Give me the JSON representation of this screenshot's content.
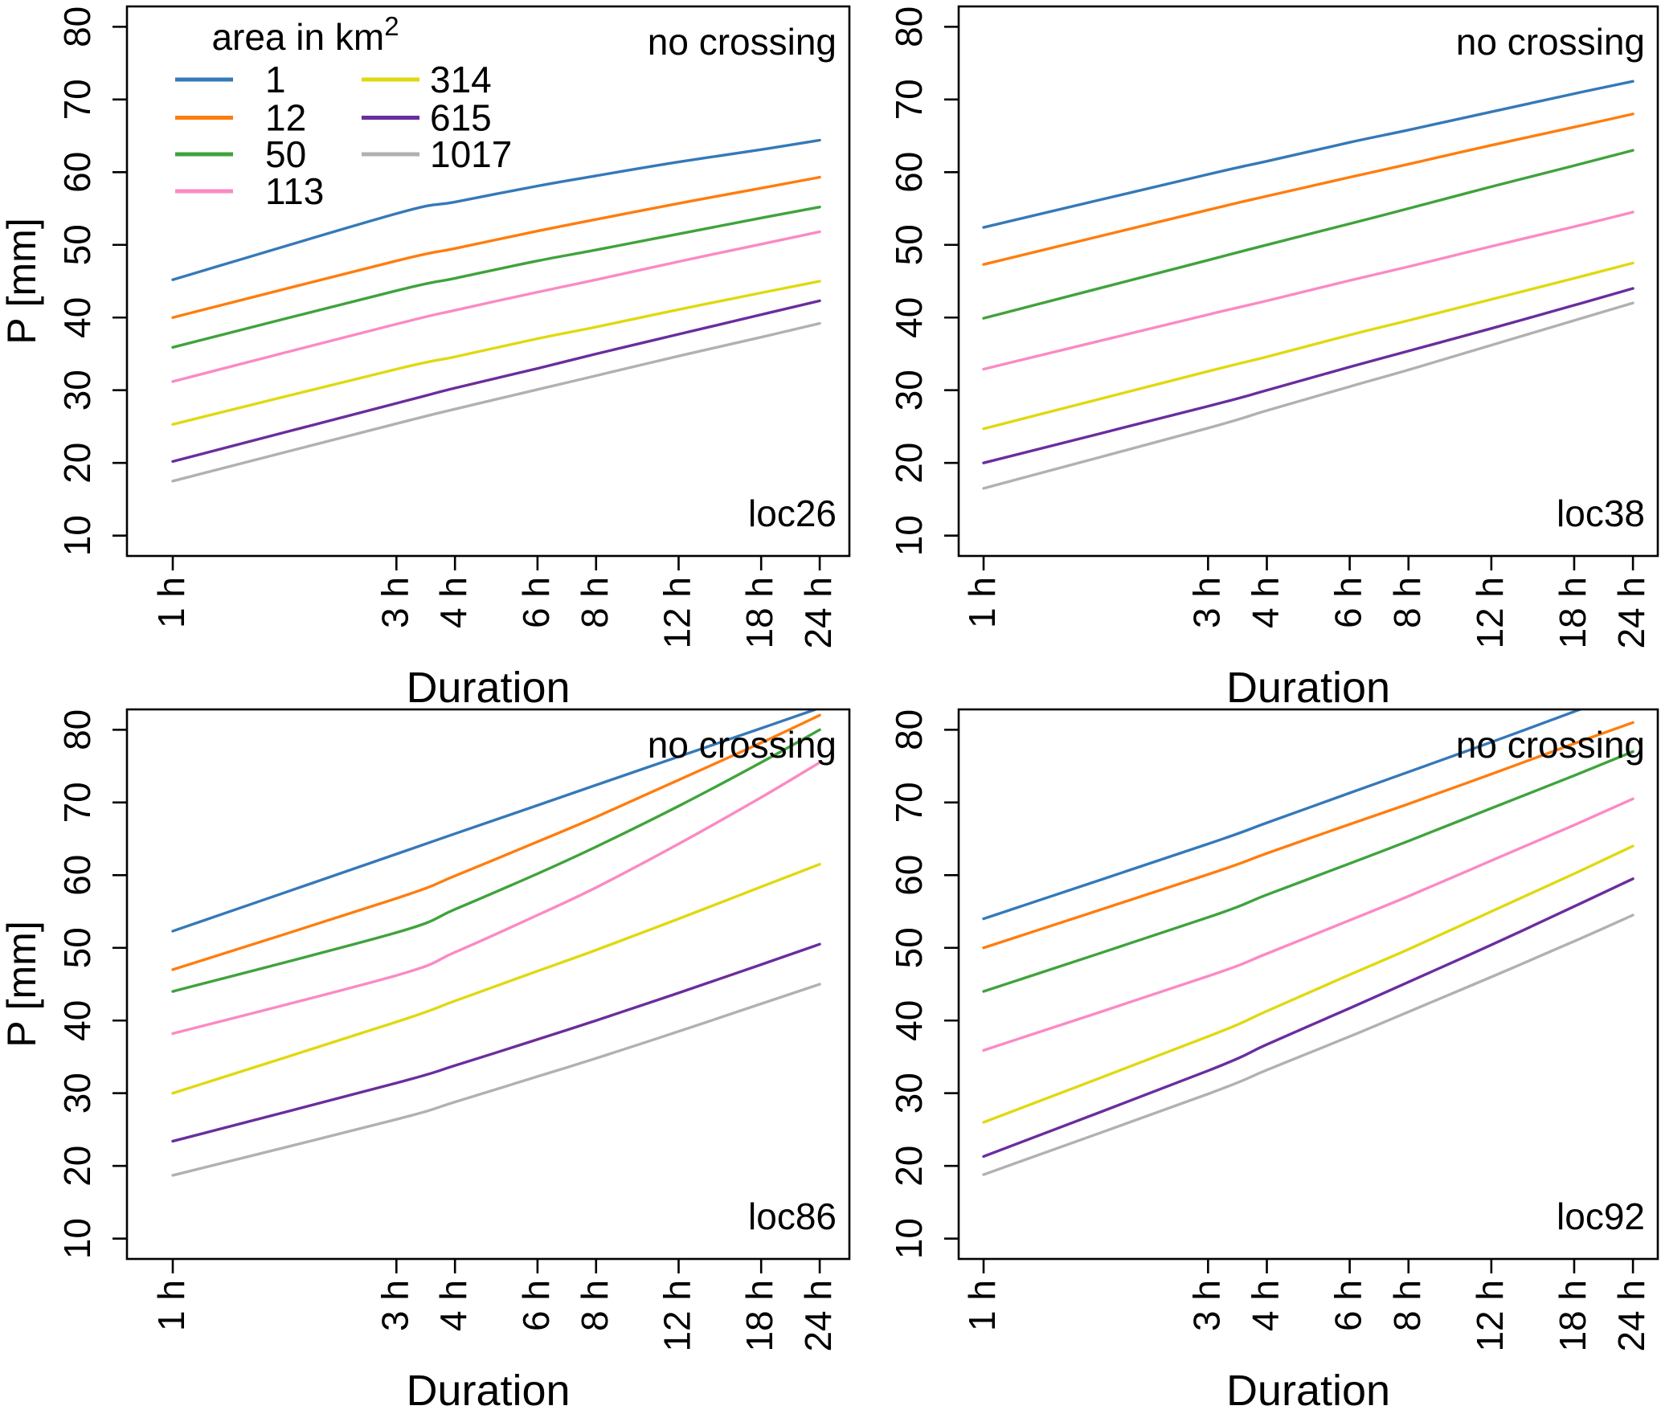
{
  "chart_data": {
    "type": "line",
    "x_scale": "log",
    "xlabel": "Duration",
    "ylabel": "P [mm]",
    "x_hours": [
      1,
      3,
      4,
      6,
      8,
      12,
      18,
      24
    ],
    "x_tick_labels": [
      "1 h",
      "3 h",
      "4 h",
      "6 h",
      "8 h",
      "12 h",
      "18 h",
      "24 h"
    ],
    "y_ticks": [
      10,
      20,
      30,
      40,
      50,
      60,
      70,
      80
    ],
    "ylim": [
      7.2,
      82.8
    ],
    "grid": false,
    "annotation_top_right": "no crossing",
    "legend": {
      "position": "top-left-panel",
      "title_text": "area in ",
      "title_unit": "km",
      "title_sup": "2",
      "entries": [
        {
          "label": "1",
          "color": "#3579b8"
        },
        {
          "label": "12",
          "color": "#ff7d0e"
        },
        {
          "label": "50",
          "color": "#3fa33c"
        },
        {
          "label": "113",
          "color": "#fb8ac3"
        },
        {
          "label": "314",
          "color": "#e0d90f"
        },
        {
          "label": "615",
          "color": "#6a2d9e"
        },
        {
          "label": "1017",
          "color": "#b1b1b1"
        }
      ]
    },
    "panels": [
      {
        "id": "loc26",
        "series": [
          {
            "area_km2": "1",
            "values": [
              45.2,
              54.3,
              55.9,
              58.1,
              59.5,
              61.4,
              63.1,
              64.4
            ]
          },
          {
            "area_km2": "12",
            "values": [
              40.0,
              47.8,
              49.5,
              51.9,
              53.5,
              55.7,
              57.8,
              59.3
            ]
          },
          {
            "area_km2": "50",
            "values": [
              35.9,
              43.7,
              45.4,
              47.8,
              49.3,
              51.5,
              53.7,
              55.2
            ]
          },
          {
            "area_km2": "113",
            "values": [
              31.2,
              39.1,
              41.0,
              43.5,
              45.2,
              47.7,
              50.1,
              51.8
            ]
          },
          {
            "area_km2": "314",
            "values": [
              25.3,
              32.9,
              34.6,
              37.1,
              38.7,
              41.1,
              43.4,
              45.0
            ]
          },
          {
            "area_km2": "615",
            "values": [
              20.2,
              28.2,
              30.3,
              33.0,
              35.0,
              37.7,
              40.4,
              42.3
            ]
          },
          {
            "area_km2": "1017",
            "values": [
              17.5,
              25.4,
              27.4,
              30.1,
              32.0,
              34.7,
              37.3,
              39.2
            ]
          }
        ]
      },
      {
        "id": "loc38",
        "series": [
          {
            "area_km2": "1",
            "values": [
              52.4,
              59.7,
              61.5,
              64.1,
              65.8,
              68.3,
              70.8,
              72.5
            ]
          },
          {
            "area_km2": "12",
            "values": [
              47.3,
              54.8,
              56.7,
              59.3,
              61.1,
              63.7,
              66.2,
              68.0
            ]
          },
          {
            "area_km2": "50",
            "values": [
              39.9,
              47.9,
              50.0,
              52.9,
              55.0,
              58.0,
              60.9,
              63.0
            ]
          },
          {
            "area_km2": "113",
            "values": [
              32.9,
              40.4,
              42.3,
              45.1,
              47.0,
              49.8,
              52.5,
              54.5
            ]
          },
          {
            "area_km2": "314",
            "values": [
              24.7,
              32.6,
              34.6,
              37.6,
              39.6,
              42.5,
              45.4,
              47.5
            ]
          },
          {
            "area_km2": "615",
            "values": [
              20.0,
              27.8,
              30.0,
              33.2,
              35.4,
              38.5,
              41.7,
              44.0
            ]
          },
          {
            "area_km2": "1017",
            "values": [
              16.5,
              24.8,
              27.2,
              30.5,
              32.8,
              36.2,
              39.6,
              42.0
            ]
          }
        ]
      },
      {
        "id": "loc86",
        "series": [
          {
            "area_km2": "1",
            "values": [
              52.3,
              62.9,
              65.7,
              69.6,
              72.4,
              76.3,
              80.2,
              83.0
            ]
          },
          {
            "area_km2": "12",
            "values": [
              47.0,
              56.8,
              59.9,
              64.6,
              68.0,
              73.1,
              78.2,
              82.0
            ]
          },
          {
            "area_km2": "50",
            "values": [
              44.0,
              52.1,
              55.3,
              60.2,
              63.9,
              69.5,
              75.5,
              80.0
            ]
          },
          {
            "area_km2": "113",
            "values": [
              38.2,
              46.2,
              49.4,
              54.5,
              58.3,
              64.3,
              70.7,
              75.5
            ]
          },
          {
            "area_km2": "314",
            "values": [
              30.0,
              39.8,
              42.7,
              46.8,
              49.7,
              54.0,
              58.4,
              61.5
            ]
          },
          {
            "area_km2": "615",
            "values": [
              23.4,
              31.4,
              33.8,
              37.4,
              40.0,
              43.8,
              47.7,
              50.5
            ]
          },
          {
            "area_km2": "1017",
            "values": [
              18.7,
              26.4,
              28.8,
              32.3,
              34.8,
              38.5,
              42.3,
              45.0
            ]
          }
        ]
      },
      {
        "id": "loc92",
        "series": [
          {
            "area_km2": "1",
            "values": [
              54.0,
              64.3,
              67.2,
              71.3,
              74.2,
              78.3,
              82.5,
              85.5
            ]
          },
          {
            "area_km2": "12",
            "values": [
              50.0,
              60.1,
              63.0,
              67.0,
              69.8,
              73.9,
              78.1,
              81.0
            ]
          },
          {
            "area_km2": "50",
            "values": [
              44.0,
              54.2,
              57.3,
              61.6,
              64.7,
              69.2,
              73.7,
              77.0
            ]
          },
          {
            "area_km2": "113",
            "values": [
              35.9,
              46.1,
              49.2,
              53.8,
              57.1,
              62.0,
              66.9,
              70.5
            ]
          },
          {
            "area_km2": "314",
            "values": [
              26.0,
              37.8,
              41.3,
              46.3,
              49.8,
              55.0,
              60.2,
              64.0
            ]
          },
          {
            "area_km2": "615",
            "values": [
              21.3,
              33.1,
              36.7,
              41.7,
              45.3,
              50.4,
              55.7,
              59.5
            ]
          },
          {
            "area_km2": "1017",
            "values": [
              18.8,
              29.9,
              33.2,
              37.8,
              41.2,
              46.0,
              50.9,
              54.5
            ]
          }
        ]
      }
    ]
  }
}
